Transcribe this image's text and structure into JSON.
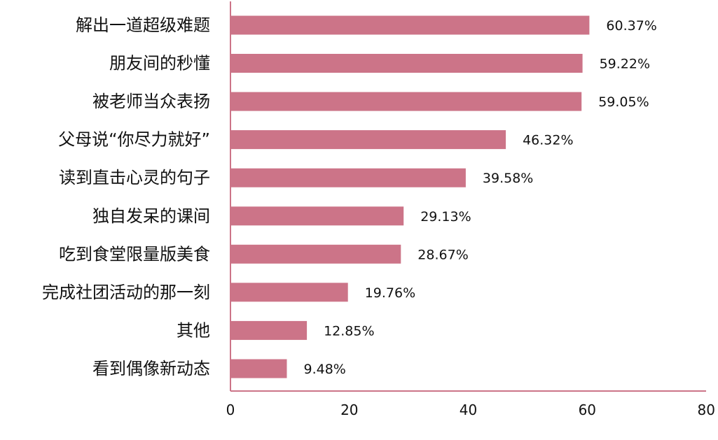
{
  "chart_data": {
    "type": "bar",
    "orientation": "horizontal",
    "categories": [
      "解出一道超级难题",
      "朋友间的秒懂",
      "被老师当众表扬",
      "父母说“你尽力就好”",
      "读到直击心灵的句子",
      "独自发呆的课间",
      "吃到食堂限量版美食",
      "完成社团活动的那一刻",
      "其他",
      "看到偶像新动态"
    ],
    "values": [
      60.37,
      59.22,
      59.05,
      46.32,
      39.58,
      29.13,
      28.67,
      19.76,
      12.85,
      9.48
    ],
    "value_labels": [
      "60.37%",
      "59.22%",
      "59.05%",
      "46.32%",
      "39.58%",
      "29.13%",
      "28.67%",
      "19.76%",
      "12.85%",
      "9.48%"
    ],
    "xlim": [
      0,
      80
    ],
    "xticks": [
      0,
      20,
      40,
      60,
      80
    ],
    "title": "",
    "xlabel": "",
    "ylabel": "",
    "grid": false,
    "bar_color": "#cc7488",
    "axis_color": "#cc7488"
  }
}
